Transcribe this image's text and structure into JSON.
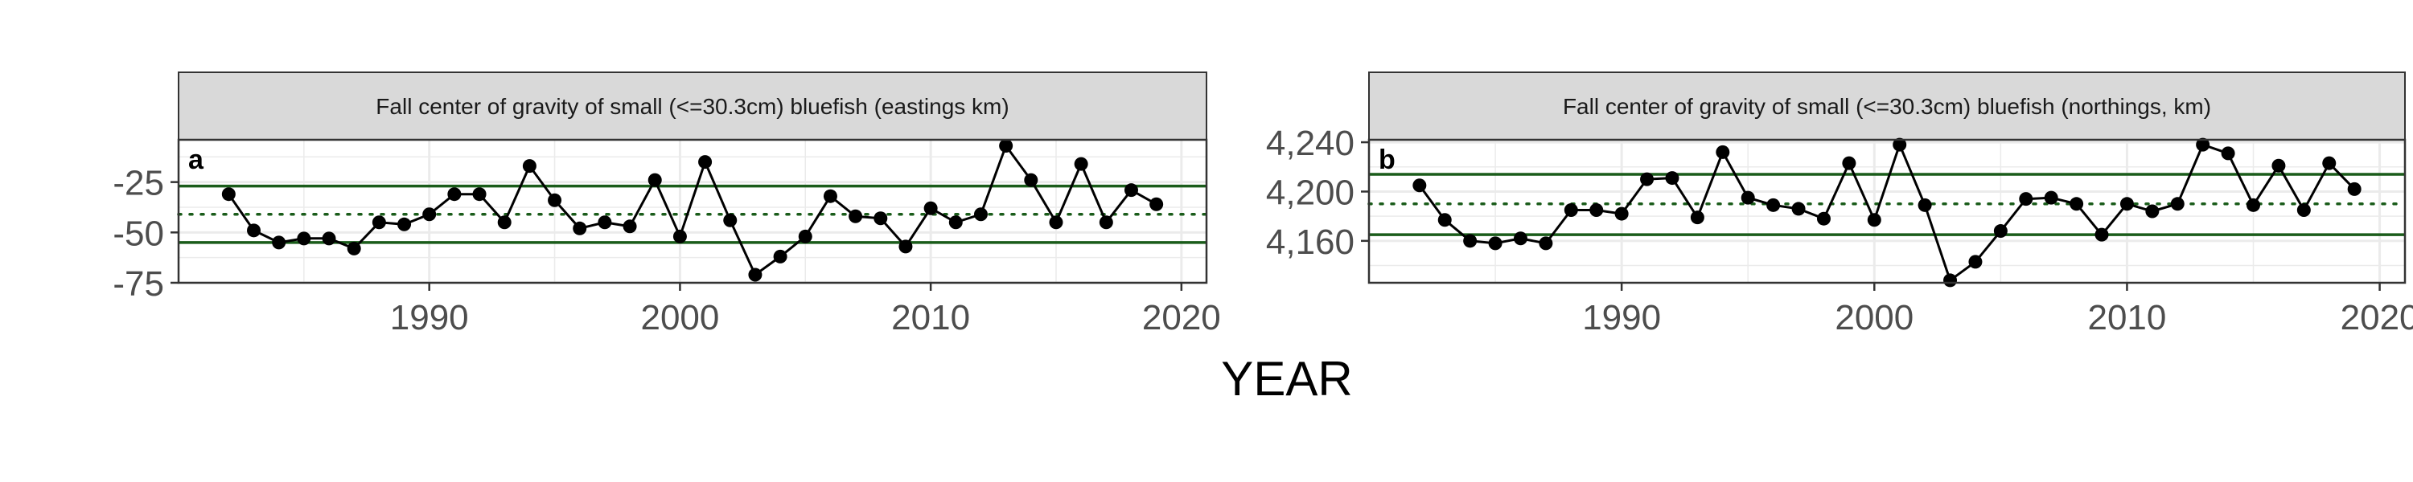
{
  "figure": {
    "xlabel": "YEAR"
  },
  "colors": {
    "ref_line": "#1a5c1a",
    "strip_fill": "#d9d9d9",
    "grid": "#ebebeb",
    "series": "#000000"
  },
  "chart_data": [
    {
      "type": "line",
      "panel_label": "a",
      "title": "Fall center of gravity of small (<=30.3cm) bluefish (eastings km)",
      "xlabel": "YEAR",
      "ylabel": "",
      "xlim": [
        1980,
        2021
      ],
      "ylim": [
        -75,
        -4
      ],
      "x_ticks": [
        1990,
        2000,
        2010,
        2020
      ],
      "y_ticks": [
        -75,
        -50,
        -25
      ],
      "y_tick_labels": [
        "-75",
        "-50",
        "-25"
      ],
      "grid": true,
      "ref_lines": {
        "mean": -41,
        "upper": -27,
        "lower": -55
      },
      "x": [
        1982,
        1983,
        1984,
        1985,
        1986,
        1987,
        1988,
        1989,
        1990,
        1991,
        1992,
        1993,
        1994,
        1995,
        1996,
        1997,
        1998,
        1999,
        2000,
        2001,
        2002,
        2003,
        2004,
        2005,
        2006,
        2007,
        2008,
        2009,
        2010,
        2011,
        2012,
        2013,
        2014,
        2015,
        2016,
        2017,
        2018,
        2019
      ],
      "y": [
        -31,
        -49,
        -55,
        -53,
        -53,
        -58,
        -45,
        -46,
        -41,
        -31,
        -31,
        -45,
        -17,
        -34,
        -48,
        -45,
        -47,
        -24,
        -52,
        -15,
        -44,
        -71,
        -62,
        -52,
        -32,
        -42,
        -43,
        -57,
        -38,
        -45,
        -41,
        -7,
        -24,
        -45,
        -16,
        -45,
        -29,
        -36
      ]
    },
    {
      "type": "line",
      "panel_label": "b",
      "title": "Fall center of gravity of small (<=30.3cm) bluefish (northings, km)",
      "xlabel": "YEAR",
      "ylabel": "",
      "xlim": [
        1980,
        2021
      ],
      "ylim": [
        4126,
        4242
      ],
      "x_ticks": [
        1990,
        2000,
        2010,
        2020
      ],
      "y_ticks": [
        4160,
        4200,
        4240
      ],
      "y_tick_labels": [
        "4,160",
        "4,200",
        "4,240"
      ],
      "grid": true,
      "ref_lines": {
        "mean": 4190,
        "upper": 4214,
        "lower": 4165
      },
      "x": [
        1982,
        1983,
        1984,
        1985,
        1986,
        1987,
        1988,
        1989,
        1990,
        1991,
        1992,
        1993,
        1994,
        1995,
        1996,
        1997,
        1998,
        1999,
        2000,
        2001,
        2002,
        2003,
        2004,
        2005,
        2006,
        2007,
        2008,
        2009,
        2010,
        2011,
        2012,
        2013,
        2014,
        2015,
        2016,
        2017,
        2018,
        2019
      ],
      "y": [
        4205,
        4177,
        4160,
        4158,
        4162,
        4158,
        4185,
        4185,
        4182,
        4210,
        4211,
        4179,
        4232,
        4195,
        4189,
        4186,
        4178,
        4223,
        4177,
        4238,
        4189,
        4128,
        4143,
        4168,
        4194,
        4195,
        4190,
        4165,
        4190,
        4184,
        4190,
        4238,
        4231,
        4189,
        4221,
        4185,
        4223,
        4202
      ]
    }
  ]
}
